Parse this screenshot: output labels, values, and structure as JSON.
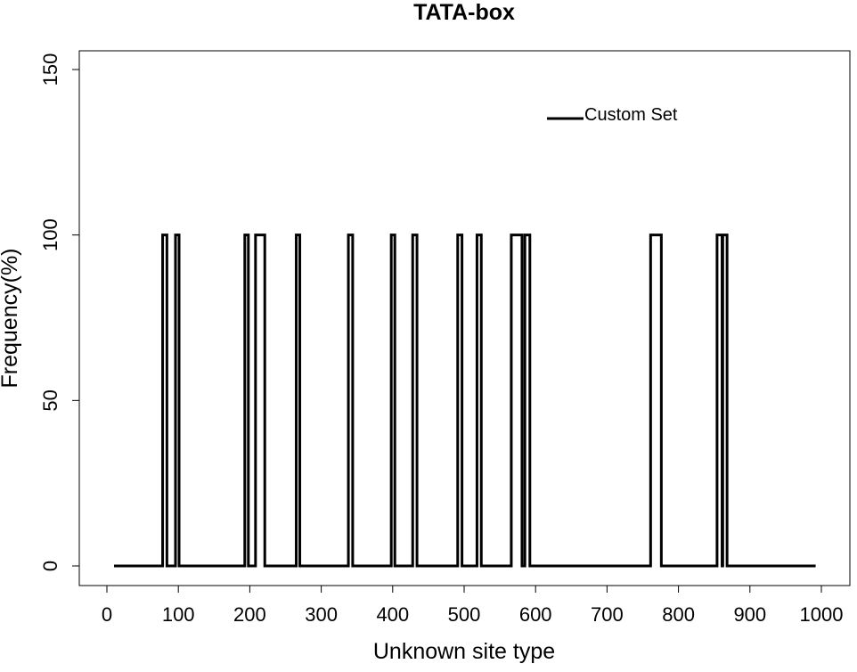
{
  "chart_data": {
    "type": "line",
    "title": "TATA-box",
    "xlabel": "Unknown site type",
    "ylabel": "Frequency(%)",
    "xlim": [
      10,
      992
    ],
    "ylim": [
      0,
      150
    ],
    "x_ticks": [
      0,
      100,
      200,
      300,
      400,
      500,
      600,
      700,
      800,
      900,
      1000
    ],
    "y_ticks": [
      0,
      50,
      100,
      150
    ],
    "grid": false,
    "legend_position": "top-right",
    "series": [
      {
        "name": "Custom Set",
        "color": "#000000",
        "steps": [
          {
            "x": 10,
            "y": 0
          },
          {
            "x": 78,
            "y": 100
          },
          {
            "x": 84,
            "y": 0
          },
          {
            "x": 96,
            "y": 100
          },
          {
            "x": 101,
            "y": 0
          },
          {
            "x": 193,
            "y": 100
          },
          {
            "x": 198,
            "y": 0
          },
          {
            "x": 208,
            "y": 100
          },
          {
            "x": 221,
            "y": 0
          },
          {
            "x": 265,
            "y": 100
          },
          {
            "x": 270,
            "y": 0
          },
          {
            "x": 338,
            "y": 100
          },
          {
            "x": 344,
            "y": 0
          },
          {
            "x": 398,
            "y": 100
          },
          {
            "x": 403,
            "y": 0
          },
          {
            "x": 428,
            "y": 100
          },
          {
            "x": 434,
            "y": 0
          },
          {
            "x": 491,
            "y": 100
          },
          {
            "x": 497,
            "y": 0
          },
          {
            "x": 518,
            "y": 100
          },
          {
            "x": 524,
            "y": 0
          },
          {
            "x": 566,
            "y": 100
          },
          {
            "x": 581,
            "y": 0
          },
          {
            "x": 585,
            "y": 100
          },
          {
            "x": 592,
            "y": 0
          },
          {
            "x": 761,
            "y": 100
          },
          {
            "x": 776,
            "y": 0
          },
          {
            "x": 854,
            "y": 100
          },
          {
            "x": 861,
            "y": 0
          },
          {
            "x": 862,
            "y": 100
          },
          {
            "x": 868,
            "y": 0
          },
          {
            "x": 992,
            "y": 0
          }
        ]
      }
    ]
  }
}
